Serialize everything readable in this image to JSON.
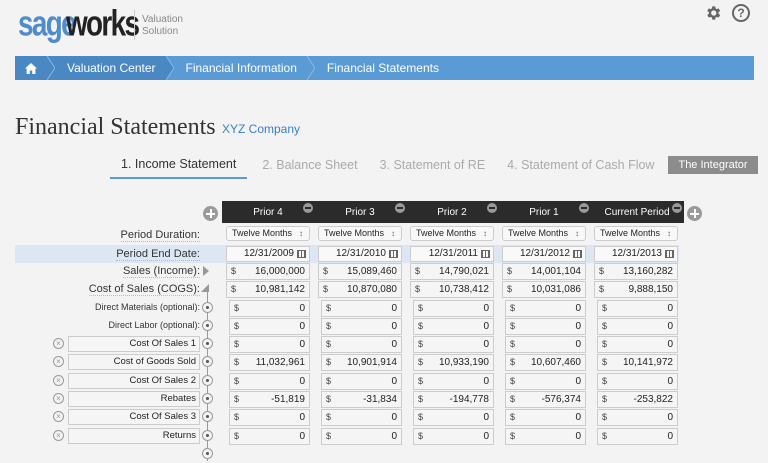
{
  "brand": {
    "logo_part1": "sage",
    "logo_part2": "works",
    "subtitle_line1": "Valuation",
    "subtitle_line2": "Solution"
  },
  "top_icons": [
    "gear-icon",
    "help-icon"
  ],
  "breadcrumb": {
    "home_icon": "home-icon",
    "items": [
      "Valuation Center",
      "Financial Information",
      "Financial Statements"
    ]
  },
  "page": {
    "title": "Financial Statements",
    "company": "XYZ Company"
  },
  "tabs": {
    "items": [
      "1. Income Statement",
      "2. Balance Sheet",
      "3. Statement of RE",
      "4. Statement of Cash Flow"
    ],
    "active_index": 0,
    "integrator_label": "The Integrator"
  },
  "columns": [
    "Prior 4",
    "Prior 3",
    "Prior 2",
    "Prior 1",
    "Current Period"
  ],
  "row_labels": {
    "period_duration": "Period Duration:",
    "period_end_date": "Period End Date:",
    "sales": "Sales (Income):",
    "cogs": "Cost of Sales (COGS):",
    "direct_materials": "Direct Materials (optional):",
    "direct_labor": "Direct Labor (optional):"
  },
  "period_duration": [
    "Twelve Months",
    "Twelve Months",
    "Twelve Months",
    "Twelve Months",
    "Twelve Months"
  ],
  "period_end_date": [
    "12/31/2009",
    "12/31/2010",
    "12/31/2011",
    "12/31/2012",
    "12/31/2013"
  ],
  "currency_symbol": "$",
  "sales": [
    "16,000,000",
    "15,089,460",
    "14,790,021",
    "14,001,104",
    "13,160,282"
  ],
  "cogs": [
    "10,981,142",
    "10,870,080",
    "10,738,412",
    "10,031,086",
    "9,888,150"
  ],
  "direct_materials": [
    "0",
    "0",
    "0",
    "0",
    "0"
  ],
  "direct_labor": [
    "0",
    "0",
    "0",
    "0",
    "0"
  ],
  "custom_rows": [
    {
      "name": "Cost Of Sales 1",
      "values": [
        "0",
        "0",
        "0",
        "0",
        "0"
      ]
    },
    {
      "name": "Cost of Goods Sold",
      "values": [
        "11,032,961",
        "10,901,914",
        "10,933,190",
        "10,607,460",
        "10,141,972"
      ]
    },
    {
      "name": "Cost Of Sales 2",
      "values": [
        "0",
        "0",
        "0",
        "0",
        "0"
      ]
    },
    {
      "name": "Rebates",
      "values": [
        "-51,819",
        "-31,834",
        "-194,778",
        "-576,374",
        "-253,822"
      ]
    },
    {
      "name": "Cost Of Sales 3",
      "values": [
        "0",
        "0",
        "0",
        "0",
        "0"
      ]
    },
    {
      "name": "Returns",
      "values": [
        "0",
        "0",
        "0",
        "0",
        "0"
      ]
    }
  ],
  "colors": {
    "accent": "#5b9bd5",
    "header_bar": "#2b2b2b",
    "company_link": "#3a7fc4",
    "integrator_bg": "#8c8c8c"
  }
}
